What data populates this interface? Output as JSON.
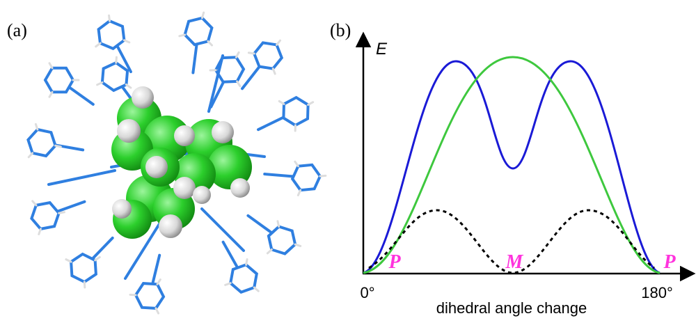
{
  "panel_a": {
    "label": "(a)"
  },
  "panel_b": {
    "label": "(b)",
    "y_axis_label": "E",
    "x_start_label": "0°",
    "x_end_label": "180°",
    "x_axis_label": "dihedral angle change",
    "state_labels": [
      "P",
      "M",
      "P"
    ]
  }
}
